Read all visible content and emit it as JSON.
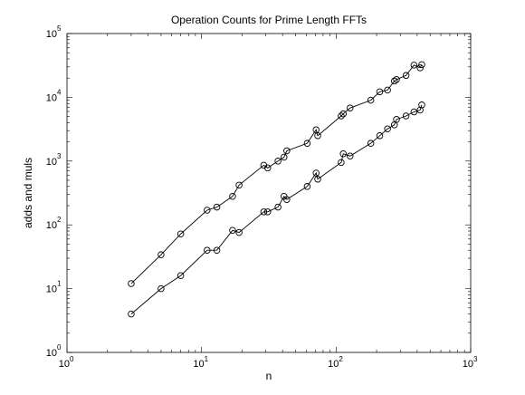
{
  "chart_data": {
    "type": "line",
    "title": "Operation Counts for Prime Length FFTs",
    "xlabel": "n",
    "ylabel": "adds and muls",
    "xscale": "log",
    "yscale": "log",
    "xlim": [
      1,
      1000
    ],
    "ylim": [
      1,
      100000
    ],
    "grid": false,
    "x_tick_labels": [
      {
        "value": 1,
        "base": "10",
        "exp": "0"
      },
      {
        "value": 10,
        "base": "10",
        "exp": "1"
      },
      {
        "value": 100,
        "base": "10",
        "exp": "2"
      },
      {
        "value": 1000,
        "base": "10",
        "exp": "3"
      }
    ],
    "y_tick_labels": [
      {
        "value": 1,
        "base": "10",
        "exp": "0"
      },
      {
        "value": 10,
        "base": "10",
        "exp": "1"
      },
      {
        "value": 100,
        "base": "10",
        "exp": "2"
      },
      {
        "value": 1000,
        "base": "10",
        "exp": "3"
      },
      {
        "value": 10000,
        "base": "10",
        "exp": "4"
      },
      {
        "value": 100000,
        "base": "10",
        "exp": "5"
      }
    ],
    "marker": "circle",
    "series": [
      {
        "x": [
          3,
          5,
          7,
          11,
          13,
          17,
          19,
          29,
          31,
          37,
          41,
          43,
          61,
          71,
          73,
          109,
          113,
          127,
          181,
          211,
          241,
          271,
          281,
          331,
          379,
          421,
          433
        ],
        "y": [
          12,
          34,
          72,
          170,
          190,
          280,
          420,
          860,
          780,
          1000,
          1150,
          1450,
          1900,
          3100,
          2500,
          5100,
          5500,
          6800,
          9000,
          12200,
          13000,
          18000,
          19000,
          22000,
          32000,
          29000,
          32500
        ]
      },
      {
        "x": [
          3,
          5,
          7,
          11,
          13,
          17,
          19,
          29,
          31,
          37,
          41,
          43,
          61,
          71,
          73,
          109,
          113,
          127,
          181,
          211,
          241,
          271,
          281,
          331,
          379,
          421,
          433
        ],
        "y": [
          4,
          10,
          16,
          40,
          40,
          82,
          76,
          160,
          160,
          190,
          280,
          250,
          400,
          650,
          520,
          950,
          1300,
          1200,
          1900,
          2500,
          3200,
          3700,
          4500,
          5100,
          5900,
          6300,
          7600
        ]
      }
    ]
  }
}
